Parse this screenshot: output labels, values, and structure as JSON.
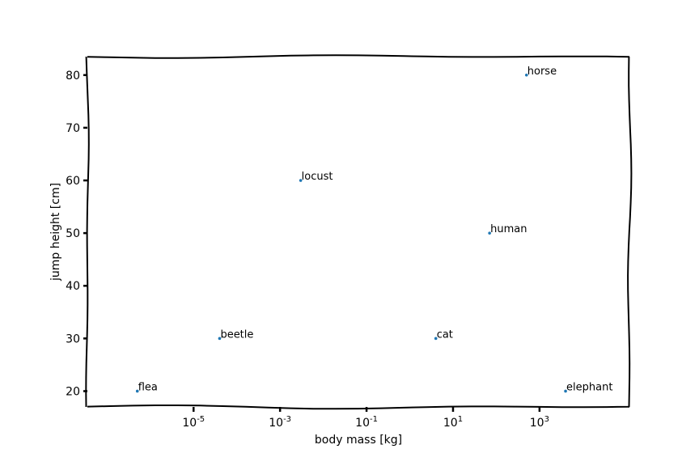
{
  "chart_data": {
    "type": "scatter",
    "style": "xkcd",
    "xlabel": "body mass [kg]",
    "ylabel": "jump height [cm]",
    "xscale": "log",
    "xlim": [
      3.5e-08,
      120000
    ],
    "ylim": [
      17,
      83.5
    ],
    "x_ticks": [
      {
        "base": "10",
        "exp": "-5",
        "value": 1e-05
      },
      {
        "base": "10",
        "exp": "-3",
        "value": 0.001
      },
      {
        "base": "10",
        "exp": "-1",
        "value": 0.1
      },
      {
        "base": "10",
        "exp": "1",
        "value": 10
      },
      {
        "base": "10",
        "exp": "3",
        "value": 1000
      }
    ],
    "y_ticks": [
      {
        "label": "20",
        "value": 20
      },
      {
        "label": "30",
        "value": 30
      },
      {
        "label": "40",
        "value": 40
      },
      {
        "label": "50",
        "value": 50
      },
      {
        "label": "60",
        "value": 60
      },
      {
        "label": "70",
        "value": 70
      },
      {
        "label": "80",
        "value": 80
      }
    ],
    "points": [
      {
        "label": "flea",
        "x": 5e-07,
        "y": 20
      },
      {
        "label": "beetle",
        "x": 4e-05,
        "y": 30
      },
      {
        "label": "locust",
        "x": 0.003,
        "y": 60
      },
      {
        "label": "cat",
        "x": 4,
        "y": 30
      },
      {
        "label": "human",
        "x": 70,
        "y": 50
      },
      {
        "label": "horse",
        "x": 500,
        "y": 80
      },
      {
        "label": "elephant",
        "x": 4000,
        "y": 20
      }
    ],
    "marker_color": "#1f77b4",
    "grid": false
  }
}
